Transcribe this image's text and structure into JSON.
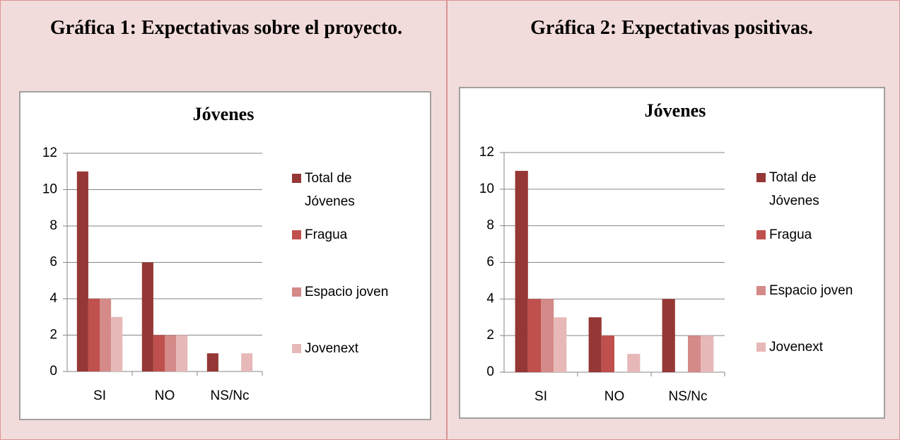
{
  "headers": [
    "Gráfica 1: Expectativas sobre el proyecto.",
    "Gráfica 2: Expectativas positivas."
  ],
  "chart_data": [
    {
      "type": "bar",
      "title": "Jóvenes",
      "categories": [
        "SI",
        "NO",
        "NS/Nc"
      ],
      "series": [
        {
          "name": "Total de Jóvenes",
          "color": "#953735",
          "values": [
            11,
            6,
            1
          ]
        },
        {
          "name": "Fragua",
          "color": "#c0504d",
          "values": [
            4,
            2,
            0
          ]
        },
        {
          "name": "Espacio joven",
          "color": "#d48a88",
          "values": [
            4,
            2,
            0
          ]
        },
        {
          "name": "Jovenext",
          "color": "#e6b9b8",
          "values": [
            3,
            2,
            1
          ]
        }
      ],
      "ylim": [
        0,
        12
      ],
      "yticks": [
        0,
        2,
        4,
        6,
        8,
        10,
        12
      ],
      "grid": true,
      "legend": "right"
    },
    {
      "type": "bar",
      "title": "Jóvenes",
      "categories": [
        "SI",
        "NO",
        "NS/Nc"
      ],
      "series": [
        {
          "name": "Total de Jóvenes",
          "color": "#953735",
          "values": [
            11,
            3,
            4
          ]
        },
        {
          "name": "Fragua",
          "color": "#c0504d",
          "values": [
            4,
            2,
            0
          ]
        },
        {
          "name": "Espacio joven",
          "color": "#d48a88",
          "values": [
            4,
            0,
            2
          ]
        },
        {
          "name": "Jovenext",
          "color": "#e6b9b8",
          "values": [
            3,
            1,
            2
          ]
        }
      ],
      "ylim": [
        0,
        12
      ],
      "yticks": [
        0,
        2,
        4,
        6,
        8,
        10,
        12
      ],
      "grid": true,
      "legend": "right"
    }
  ]
}
